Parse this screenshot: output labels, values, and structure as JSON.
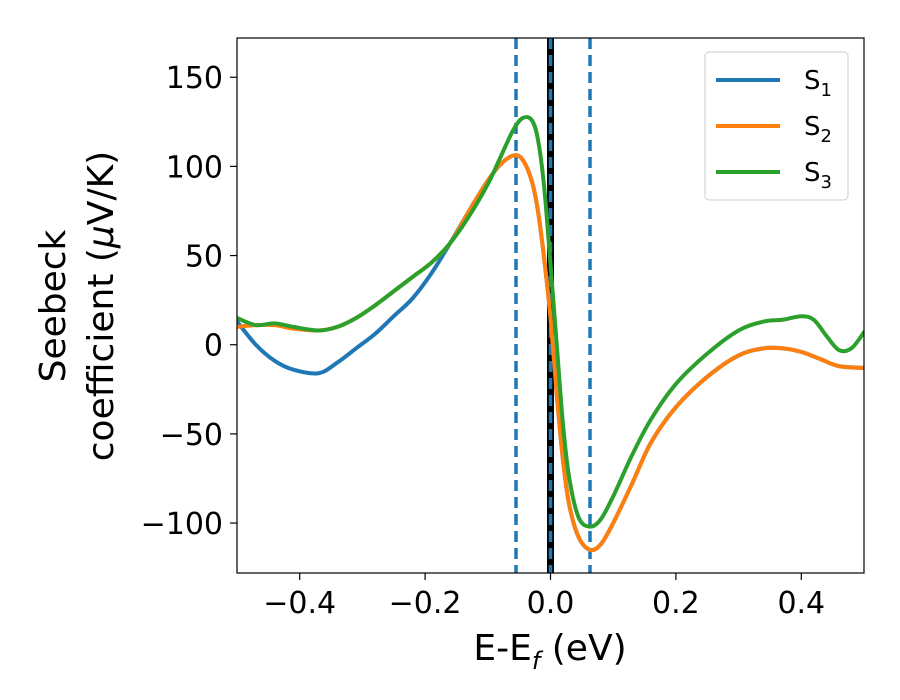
{
  "chart_data": {
    "type": "line",
    "xlabel": "E-E",
    "xlabel_sub": "f",
    "xlabel_unit": " (eV)",
    "ylabel_line1": "Seebeck",
    "ylabel_line2": "coefficient  (",
    "ylabel_mu": "μ",
    "ylabel_unit": "V/K)",
    "xlim": [
      -0.5,
      0.5
    ],
    "ylim": [
      -128,
      172
    ],
    "xticks": [
      -0.4,
      -0.2,
      0.0,
      0.2,
      0.4
    ],
    "xtick_labels": [
      "−0.4",
      "−0.2",
      "0.0",
      "0.2",
      "0.4"
    ],
    "yticks": [
      150,
      100,
      50,
      0,
      -50,
      -100
    ],
    "ytick_labels": [
      "150",
      "100",
      "50",
      "0",
      "−50",
      "−100"
    ],
    "grid": false,
    "legend_position": "top-right",
    "vlines": [
      {
        "x": -0.055,
        "style": "dashed",
        "color": "#1f77b4"
      },
      {
        "x": 0.0,
        "style": "solid",
        "color": "#000000"
      },
      {
        "x": 0.0,
        "style": "dashed",
        "color": "#1f77b4"
      },
      {
        "x": 0.063,
        "style": "dashed",
        "color": "#1f77b4"
      }
    ],
    "series": [
      {
        "name": "S",
        "sub": "1",
        "color": "#1f77b4",
        "x": [
          -0.5,
          -0.47,
          -0.44,
          -0.41,
          -0.37,
          -0.34,
          -0.31,
          -0.28,
          -0.25,
          -0.22,
          -0.19,
          -0.16,
          -0.13,
          -0.1,
          -0.08,
          -0.06,
          -0.045,
          -0.03,
          -0.02,
          -0.01,
          0.0,
          0.01,
          0.02,
          0.03,
          0.045,
          0.063,
          0.08,
          0.1,
          0.13,
          0.16,
          0.2,
          0.25,
          0.3,
          0.34,
          0.37,
          0.4,
          0.43,
          0.46,
          0.5
        ],
        "y": [
          13,
          0,
          -9,
          -14,
          -16,
          -10,
          -2,
          6,
          16,
          26,
          40,
          57,
          75,
          92,
          101,
          106,
          104,
          92,
          75,
          48,
          15,
          -28,
          -65,
          -90,
          -108,
          -115,
          -112,
          -100,
          -78,
          -55,
          -35,
          -18,
          -6,
          -2,
          -2,
          -4,
          -8,
          -12,
          -13
        ]
      },
      {
        "name": "S",
        "sub": "2",
        "color": "#ff7f0e",
        "x": [
          -0.5,
          -0.47,
          -0.44,
          -0.41,
          -0.37,
          -0.34,
          -0.31,
          -0.28,
          -0.25,
          -0.22,
          -0.19,
          -0.16,
          -0.13,
          -0.1,
          -0.08,
          -0.06,
          -0.045,
          -0.03,
          -0.02,
          -0.01,
          0.0,
          0.01,
          0.02,
          0.03,
          0.045,
          0.063,
          0.08,
          0.1,
          0.13,
          0.16,
          0.2,
          0.25,
          0.3,
          0.34,
          0.37,
          0.4,
          0.43,
          0.46,
          0.5
        ],
        "y": [
          10,
          11,
          11,
          9,
          8,
          10,
          15,
          22,
          30,
          38,
          46,
          57,
          75,
          92,
          101,
          106,
          104,
          92,
          75,
          48,
          15,
          -28,
          -65,
          -90,
          -108,
          -115,
          -112,
          -100,
          -78,
          -55,
          -35,
          -18,
          -6,
          -2,
          -2,
          -4,
          -8,
          -12,
          -13
        ]
      },
      {
        "name": "S",
        "sub": "3",
        "color": "#2ca02c",
        "x": [
          -0.5,
          -0.47,
          -0.44,
          -0.41,
          -0.37,
          -0.34,
          -0.31,
          -0.28,
          -0.25,
          -0.22,
          -0.19,
          -0.16,
          -0.13,
          -0.1,
          -0.08,
          -0.06,
          -0.045,
          -0.03,
          -0.02,
          -0.01,
          0.0,
          0.01,
          0.02,
          0.03,
          0.045,
          0.063,
          0.08,
          0.1,
          0.13,
          0.16,
          0.2,
          0.25,
          0.3,
          0.34,
          0.37,
          0.4,
          0.42,
          0.44,
          0.46,
          0.48,
          0.5
        ],
        "y": [
          15,
          11,
          12,
          10,
          8,
          10,
          15,
          22,
          30,
          38,
          46,
          57,
          72,
          90,
          105,
          120,
          127,
          126,
          115,
          88,
          45,
          0,
          -45,
          -75,
          -97,
          -102,
          -98,
          -85,
          -62,
          -42,
          -22,
          -5,
          8,
          13,
          14,
          16,
          14,
          5,
          -3,
          -2,
          7
        ]
      }
    ]
  }
}
